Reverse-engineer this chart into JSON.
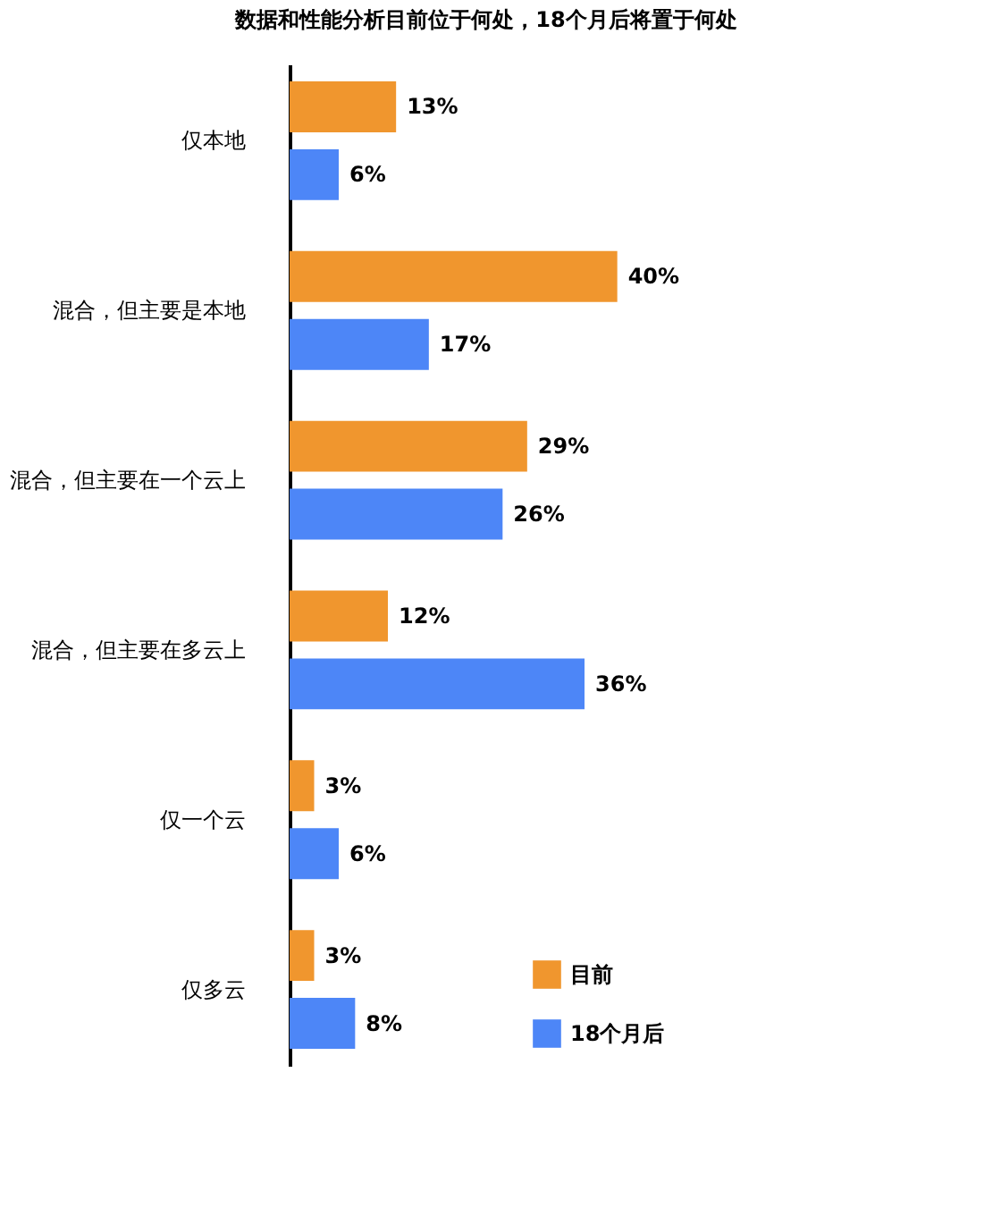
{
  "chart_data": {
    "type": "bar",
    "orientation": "horizontal",
    "title": "数据和性能分析目前位于何处，18个月后将置于何处",
    "categories": [
      "仅本地",
      "混合，但主要是本地",
      "混合，但主要在一个云上",
      "混合，但主要在多云上",
      "仅一个云",
      "仅多云"
    ],
    "series": [
      {
        "name": "目前",
        "color": "#f0962e",
        "values": [
          13,
          40,
          29,
          12,
          3,
          3
        ],
        "value_labels": [
          "13%",
          "40%",
          "29%",
          "12%",
          "3%",
          "3%"
        ]
      },
      {
        "name": "18个月后",
        "color": "#4d86f7",
        "values": [
          6,
          17,
          26,
          36,
          6,
          8
        ],
        "value_labels": [
          "6%",
          "17%",
          "26%",
          "36%",
          "6%",
          "8%"
        ]
      }
    ],
    "legend": "bottom right",
    "grid": false
  }
}
